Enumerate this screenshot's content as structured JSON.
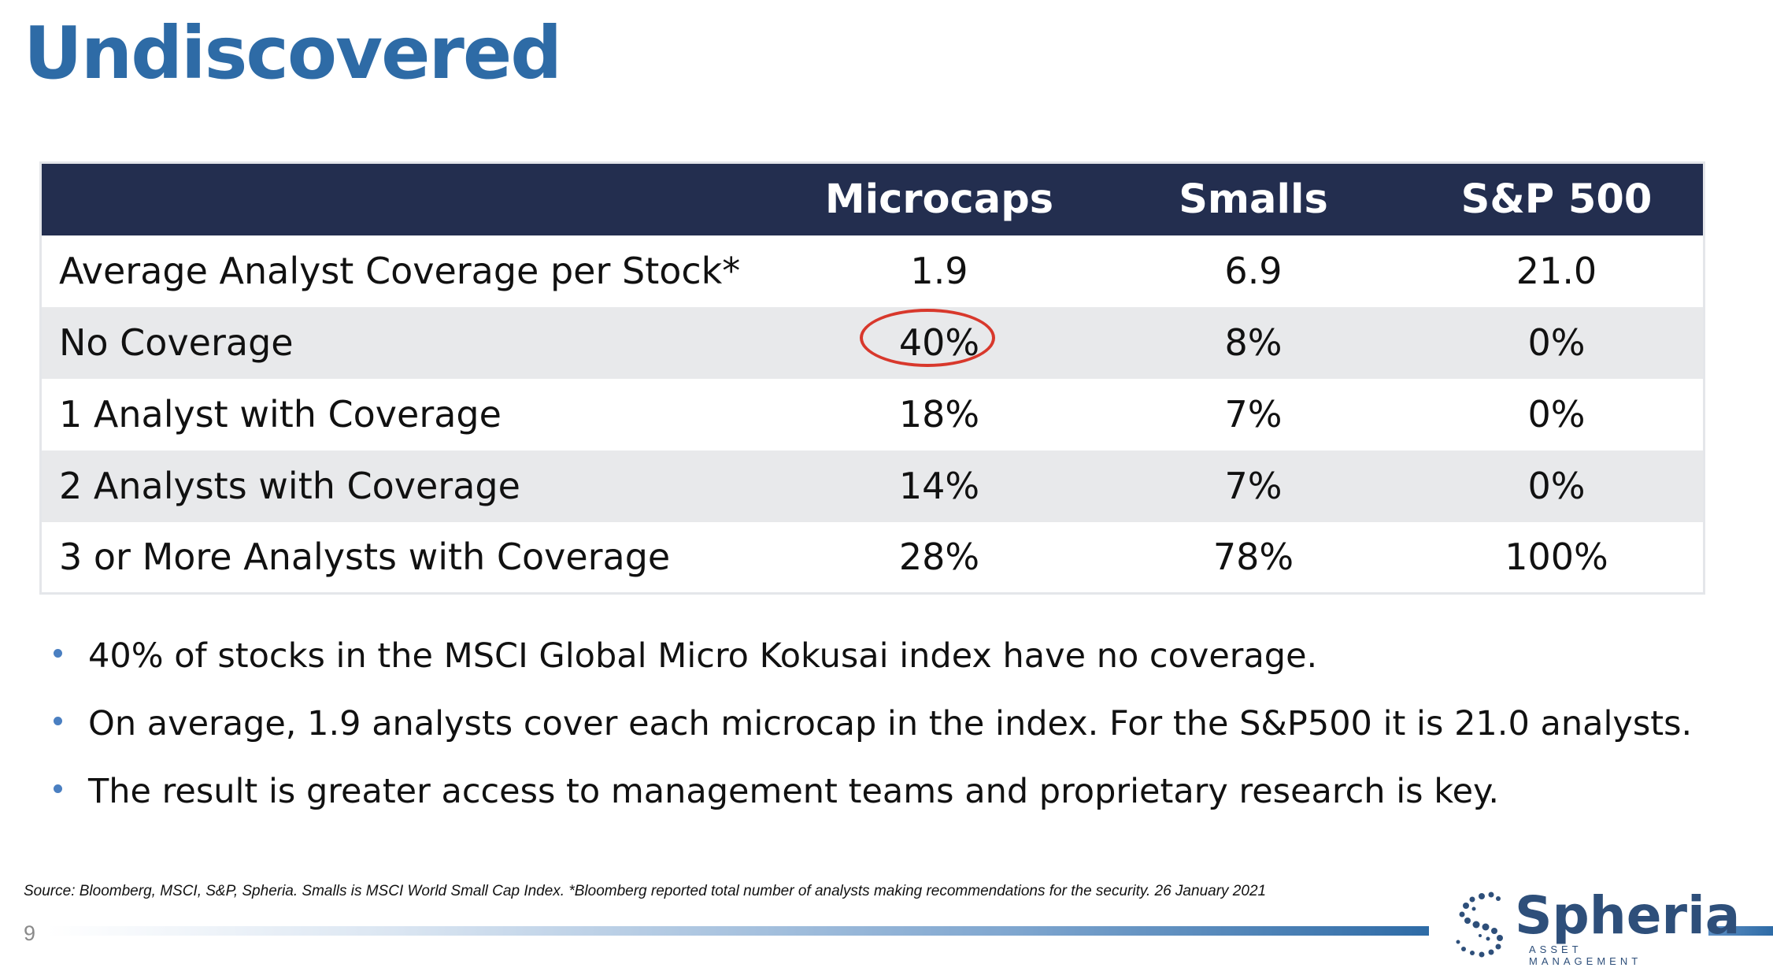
{
  "title": "Undiscovered",
  "table": {
    "headers": [
      "",
      "Microcaps",
      "Smalls",
      "S&P 500"
    ],
    "rows": [
      {
        "label": "Average Analyst Coverage per Stock*",
        "values": [
          "1.9",
          "6.9",
          "21.0"
        ]
      },
      {
        "label": "No Coverage",
        "values": [
          "40%",
          "8%",
          "0%"
        ]
      },
      {
        "label": "1 Analyst with Coverage",
        "values": [
          "18%",
          "7%",
          "0%"
        ]
      },
      {
        "label": "2 Analysts with Coverage",
        "values": [
          "14%",
          "7%",
          "0%"
        ]
      },
      {
        "label": "3 or More Analysts with Coverage",
        "values": [
          "28%",
          "78%",
          "100%"
        ]
      }
    ]
  },
  "bullets": [
    "40% of stocks in the MSCI Global Micro Kokusai index have no coverage.",
    "On average, 1.9 analysts cover each microcap in the index. For the S&P500 it is 21.0 analysts.",
    "The result is greater access to management teams and proprietary research is key."
  ],
  "source": "Source: Bloomberg, MSCI, S&P, Spheria. Smalls is MSCI World Small Cap Index. *Bloomberg reported total number of analysts making recommendations for the security. 26 January 2021",
  "page_number": "9",
  "logo": {
    "name": "Spheria",
    "subtitle": "ASSET MANAGEMENT"
  },
  "colors": {
    "title": "#2e6ba6",
    "header_bg": "#232e4f",
    "highlight_circle": "#d8382c",
    "bullet": "#4a7fc1"
  }
}
